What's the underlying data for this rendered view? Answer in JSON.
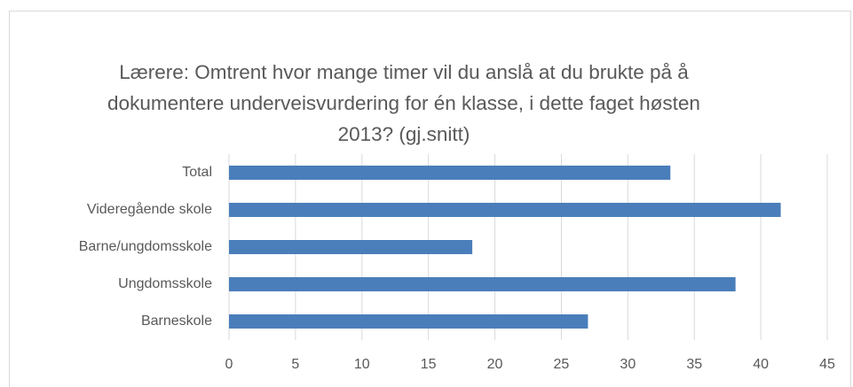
{
  "chart_data": {
    "type": "bar",
    "orientation": "horizontal",
    "title": "Lærere: Omtrent hvor mange timer vil du anslå at du brukte på å dokumentere underveisvurdering for én klasse, i dette faget høsten 2013? (gj.snitt)",
    "categories": [
      "Total",
      "Videregående skole",
      "Barne/ungdomsskole",
      "Ungdomsskole",
      "Barneskole"
    ],
    "values": [
      33.2,
      41.5,
      18.3,
      38.1,
      27.0
    ],
    "color": "#4a7ebb",
    "xlim": [
      0,
      45
    ],
    "xticks": [
      0,
      5,
      10,
      15,
      20,
      25,
      30,
      35,
      40,
      45
    ],
    "grid": true
  }
}
